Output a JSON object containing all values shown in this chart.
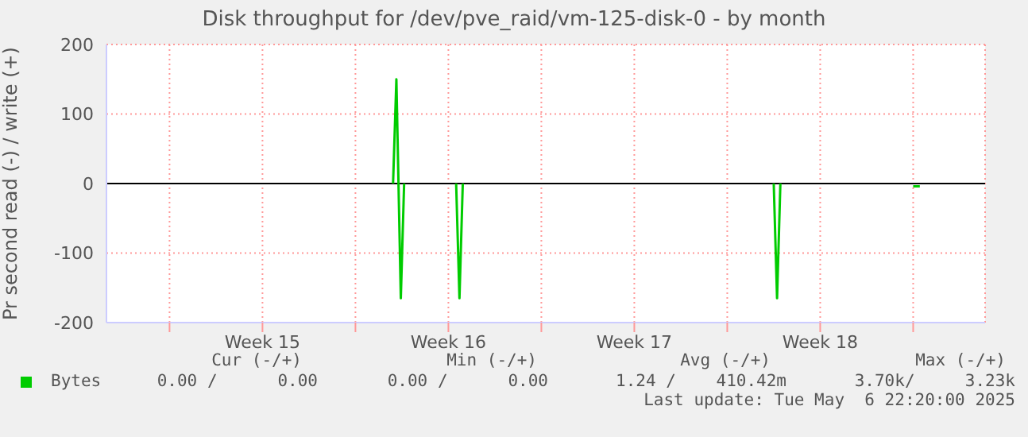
{
  "chart_data": {
    "type": "line",
    "title": "Disk throughput for /dev/pve_raid/vm-125-disk-0 - by month",
    "ylabel": "Pr second read (-) / write (+)",
    "xlim": [
      "2025-04-04T15:00",
      "2025-05-07T17:00"
    ],
    "xticks": [
      {
        "value": "2025-04-07T00:00",
        "label": null
      },
      {
        "value": "2025-04-10T12:00",
        "label": "Week 15"
      },
      {
        "value": "2025-04-14T00:00",
        "label": null
      },
      {
        "value": "2025-04-17T12:00",
        "label": "Week 16"
      },
      {
        "value": "2025-04-21T00:00",
        "label": null
      },
      {
        "value": "2025-04-24T12:00",
        "label": "Week 17"
      },
      {
        "value": "2025-04-28T00:00",
        "label": null
      },
      {
        "value": "2025-05-01T12:00",
        "label": "Week 18"
      },
      {
        "value": "2025-05-05T00:00",
        "label": null
      }
    ],
    "ylim": [
      -200,
      200
    ],
    "yticks": [
      -200,
      -100,
      0,
      100,
      200
    ],
    "grid": true,
    "legend": "bottom left",
    "ref_lines": [
      {
        "axis": "y",
        "value": 0,
        "color": "#000000"
      }
    ],
    "series": [
      {
        "name": "Bytes",
        "color": "#00cc00",
        "x": [
          "2025-04-15T10:00",
          "2025-04-15T13:00",
          "2025-04-15T17:00",
          "2025-04-15T20:00",
          "2025-04-16T12:00",
          "2025-04-17T19:00",
          "2025-04-17T22:00",
          "2025-04-18T01:00",
          "2025-04-24T00:00",
          "2025-04-29T18:00",
          "2025-04-29T21:00",
          "2025-04-30T00:00",
          "2025-05-02T00:00",
          "2025-05-05T00:00",
          "2025-05-05T06:00"
        ],
        "values": [
          0,
          150,
          -165,
          0,
          null,
          0,
          -165,
          0,
          null,
          0,
          -165,
          0,
          null,
          -4,
          -4
        ]
      }
    ],
    "annotations": [
      "Cur (-/+)",
      "Min (-/+)",
      "Avg (-/+)",
      "Max (-/+)",
      "0.00 /      0.00",
      "0.00 /      0.00",
      "1.24 /    410.42m",
      "3.70k/     3.23k",
      "Last update: Tue May  6 22:20:00 2025"
    ]
  }
}
